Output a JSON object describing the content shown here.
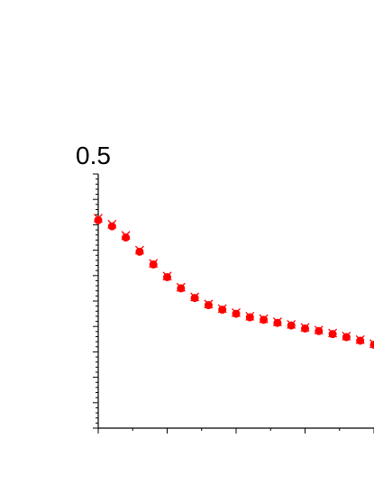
{
  "chart_data": {
    "type": "scatter",
    "title": "",
    "xlabel": "",
    "ylabel": "",
    "y_tick_label_top": "0.5",
    "ylim": [
      0.0,
      0.5
    ],
    "xlim": [
      0,
      20
    ],
    "grid": false,
    "legend": "none",
    "marker_color": "#ff0000",
    "series": [
      {
        "marker": "dot",
        "x": [
          0,
          1,
          2,
          3,
          4,
          5,
          6,
          7,
          8,
          9,
          10,
          11,
          12,
          13,
          14,
          15,
          16,
          17,
          18,
          19,
          20
        ],
        "y": [
          0.409,
          0.397,
          0.375,
          0.347,
          0.322,
          0.297,
          0.275,
          0.256,
          0.242,
          0.233,
          0.225,
          0.218,
          0.213,
          0.207,
          0.202,
          0.196,
          0.191,
          0.185,
          0.179,
          0.172,
          0.164
        ]
      },
      {
        "marker": "cross",
        "x": [
          0,
          1,
          2,
          3,
          4,
          5,
          6,
          7,
          8,
          9,
          10,
          11,
          12,
          13,
          14,
          15,
          16,
          17,
          18,
          19,
          20
        ],
        "y": [
          0.413,
          0.401,
          0.379,
          0.35,
          0.324,
          0.299,
          0.277,
          0.258,
          0.244,
          0.235,
          0.227,
          0.22,
          0.215,
          0.209,
          0.204,
          0.198,
          0.193,
          0.187,
          0.181,
          0.174,
          0.166
        ]
      }
    ]
  }
}
